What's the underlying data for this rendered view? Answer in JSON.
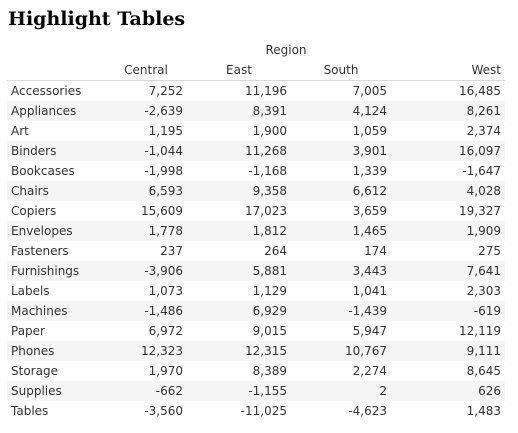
{
  "page": {
    "title": "Highlight Tables"
  },
  "chart_data": {
    "type": "table",
    "title": "Highlight Tables",
    "column_group_label": "Region",
    "columns": [
      "Central",
      "East",
      "South",
      "West"
    ],
    "rows": [
      {
        "label": "Accessories",
        "values": [
          "7,252",
          "11,196",
          "7,005",
          "16,485"
        ]
      },
      {
        "label": "Appliances",
        "values": [
          "-2,639",
          "8,391",
          "4,124",
          "8,261"
        ]
      },
      {
        "label": "Art",
        "values": [
          "1,195",
          "1,900",
          "1,059",
          "2,374"
        ]
      },
      {
        "label": "Binders",
        "values": [
          "-1,044",
          "11,268",
          "3,901",
          "16,097"
        ]
      },
      {
        "label": "Bookcases",
        "values": [
          "-1,998",
          "-1,168",
          "1,339",
          "-1,647"
        ]
      },
      {
        "label": "Chairs",
        "values": [
          "6,593",
          "9,358",
          "6,612",
          "4,028"
        ]
      },
      {
        "label": "Copiers",
        "values": [
          "15,609",
          "17,023",
          "3,659",
          "19,327"
        ]
      },
      {
        "label": "Envelopes",
        "values": [
          "1,778",
          "1,812",
          "1,465",
          "1,909"
        ]
      },
      {
        "label": "Fasteners",
        "values": [
          "237",
          "264",
          "174",
          "275"
        ]
      },
      {
        "label": "Furnishings",
        "values": [
          "-3,906",
          "5,881",
          "3,443",
          "7,641"
        ]
      },
      {
        "label": "Labels",
        "values": [
          "1,073",
          "1,129",
          "1,041",
          "2,303"
        ]
      },
      {
        "label": "Machines",
        "values": [
          "-1,486",
          "6,929",
          "-1,439",
          "-619"
        ]
      },
      {
        "label": "Paper",
        "values": [
          "6,972",
          "9,015",
          "5,947",
          "12,119"
        ]
      },
      {
        "label": "Phones",
        "values": [
          "12,323",
          "12,315",
          "10,767",
          "9,111"
        ]
      },
      {
        "label": "Storage",
        "values": [
          "1,970",
          "8,389",
          "2,274",
          "8,645"
        ]
      },
      {
        "label": "Supplies",
        "values": [
          "-662",
          "-1,155",
          "2",
          "626"
        ]
      },
      {
        "label": "Tables",
        "values": [
          "-3,560",
          "-11,025",
          "-4,623",
          "1,483"
        ]
      }
    ]
  }
}
